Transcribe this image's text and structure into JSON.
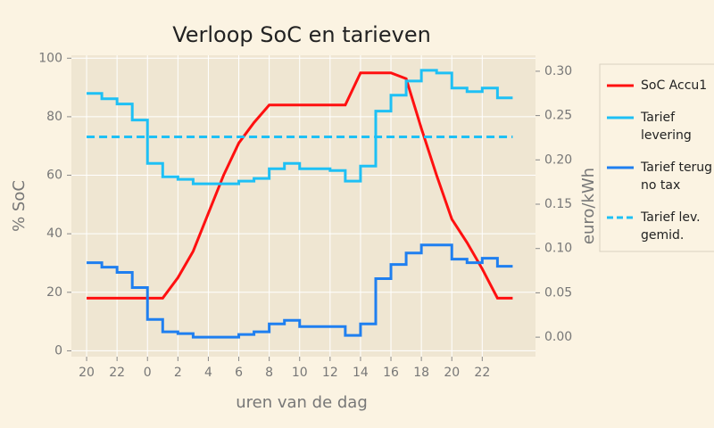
{
  "chart_data": {
    "type": "line",
    "title": "Verloop SoC en tarieven",
    "xlabel": "uren van de dag",
    "ylabel": "% SoC",
    "y2label": "euro/kWh",
    "x": [
      0,
      1,
      2,
      3,
      4,
      5,
      6,
      7,
      8,
      9,
      10,
      11,
      12,
      13,
      14,
      15,
      16,
      17,
      18,
      19,
      20,
      21,
      22,
      23,
      24,
      25,
      26,
      27,
      28
    ],
    "xlim": [
      -1,
      29.5
    ],
    "xticks": [
      {
        "value": 0,
        "label": "20"
      },
      {
        "value": 2,
        "label": "22"
      },
      {
        "value": 4,
        "label": "0"
      },
      {
        "value": 6,
        "label": "2"
      },
      {
        "value": 8,
        "label": "4"
      },
      {
        "value": 10,
        "label": "6"
      },
      {
        "value": 12,
        "label": "8"
      },
      {
        "value": 14,
        "label": "10"
      },
      {
        "value": 16,
        "label": "12"
      },
      {
        "value": 18,
        "label": "14"
      },
      {
        "value": 20,
        "label": "16"
      },
      {
        "value": 22,
        "label": "18"
      },
      {
        "value": 24,
        "label": "20"
      },
      {
        "value": 26,
        "label": "22"
      }
    ],
    "ylim": [
      -2,
      101
    ],
    "yticks": [
      0,
      20,
      40,
      60,
      80,
      100
    ],
    "y2lim": [
      -0.022,
      0.318
    ],
    "y2ticks": [
      {
        "value": 0,
        "label": "0.00"
      },
      0.05,
      {
        "value": 0.1,
        "label": "0.10"
      },
      0.15,
      {
        "value": 0.2,
        "label": "0.20"
      },
      0.25,
      {
        "value": 0.3,
        "label": "0.30"
      }
    ],
    "grid": true,
    "legend": "outside right",
    "series": [
      {
        "name": "SoC Accu1",
        "color": "#ff1010",
        "style": "line",
        "values": [
          18,
          18,
          18,
          18,
          18,
          18,
          25,
          34,
          47,
          60,
          71,
          78,
          84,
          84,
          84,
          84,
          84,
          84,
          95,
          95,
          95,
          93,
          76,
          60,
          45,
          37,
          28,
          18,
          18
        ]
      },
      {
        "name": "Tarief\nlevering",
        "color": "#1ec0f5",
        "style": "steps",
        "axis": "y2",
        "values": [
          0.275,
          0.269,
          0.263,
          0.245,
          0.196,
          0.181,
          0.178,
          0.173,
          0.173,
          0.173,
          0.176,
          0.179,
          0.19,
          0.196,
          0.19,
          0.19,
          0.188,
          0.176,
          0.193,
          0.255,
          0.273,
          0.289,
          0.301,
          0.298,
          0.281,
          0.277,
          0.281,
          0.27,
          0.27
        ]
      },
      {
        "name": "Tarief terug\nno tax",
        "color": "#1f7ff0",
        "style": "steps",
        "axis": "y2",
        "values": [
          0.084,
          0.079,
          0.073,
          0.056,
          0.02,
          0.006,
          0.004,
          0,
          0,
          0,
          0.003,
          0.006,
          0.015,
          0.019,
          0.012,
          0.012,
          0.012,
          0.002,
          0.015,
          0.066,
          0.082,
          0.095,
          0.104,
          0.104,
          0.088,
          0.084,
          0.089,
          0.08,
          0.08
        ]
      },
      {
        "name": "Tarief lev.\ngemid.",
        "color": "#1ec0f5",
        "style": "dashed",
        "axis": "y2",
        "values": [
          0.226,
          0.226,
          0.226,
          0.226,
          0.226,
          0.226,
          0.226,
          0.226,
          0.226,
          0.226,
          0.226,
          0.226,
          0.226,
          0.226,
          0.226,
          0.226,
          0.226,
          0.226,
          0.226,
          0.226,
          0.226,
          0.226,
          0.226,
          0.226,
          0.226,
          0.226,
          0.226,
          0.226,
          0.226
        ]
      }
    ]
  }
}
